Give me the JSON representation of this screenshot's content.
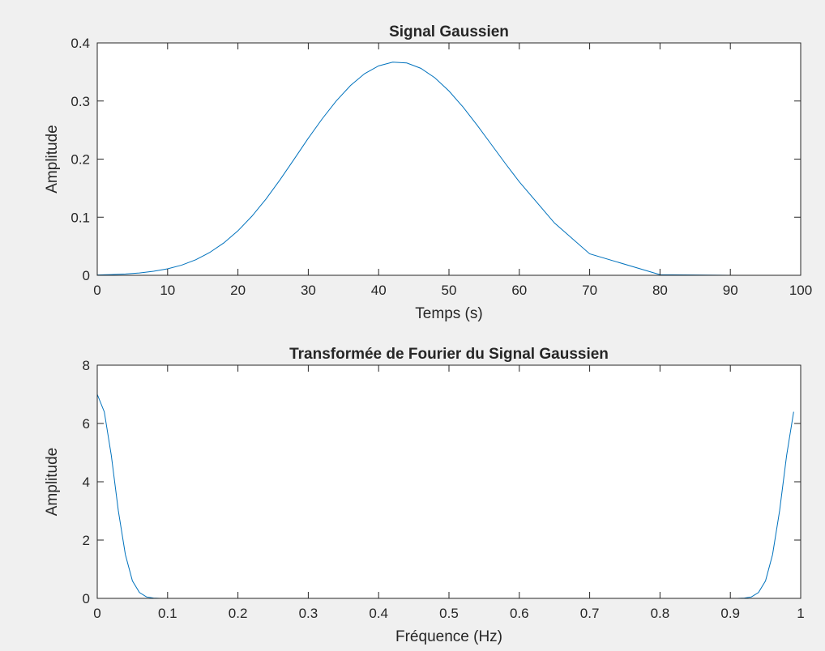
{
  "figure": {
    "background": "#f0f0f0"
  },
  "chart_data": [
    {
      "type": "line",
      "title": "Signal Gaussien",
      "xlabel": "Temps (s)",
      "ylabel": "Amplitude",
      "xlim": [
        0,
        100
      ],
      "ylim": [
        0,
        0.4
      ],
      "xticks": [
        0,
        10,
        20,
        30,
        40,
        50,
        60,
        70,
        80,
        90,
        100
      ],
      "yticks": [
        0,
        0.1,
        0.2,
        0.3,
        0.4
      ],
      "xtick_labels": [
        "0",
        "10",
        "20",
        "30",
        "40",
        "50",
        "60",
        "70",
        "80",
        "90",
        "100"
      ],
      "ytick_labels": [
        "0",
        "0.1",
        "0.2",
        "0.3",
        "0.4"
      ],
      "grid": false,
      "legend": "none",
      "series": [
        {
          "color": "#0072bd",
          "x": [
            0,
            2,
            4,
            6,
            8,
            10,
            12,
            14,
            16,
            18,
            20,
            22,
            24,
            26,
            28,
            30,
            32,
            34,
            36,
            38,
            40,
            42,
            44,
            46,
            48,
            50,
            52,
            54,
            56,
            58,
            60,
            65,
            70,
            80,
            90,
            100
          ],
          "y": [
            0.0006,
            0.0012,
            0.0022,
            0.004,
            0.0069,
            0.0111,
            0.0175,
            0.0267,
            0.0394,
            0.0558,
            0.0766,
            0.1019,
            0.1315,
            0.1647,
            0.2001,
            0.236,
            0.2697,
            0.3005,
            0.3266,
            0.347,
            0.3605,
            0.3669,
            0.3655,
            0.3563,
            0.3399,
            0.3172,
            0.2896,
            0.2585,
            0.2256,
            0.1927,
            0.1609,
            0.09,
            0.037,
            0.001,
            0.0,
            0.0
          ]
        }
      ]
    },
    {
      "type": "line",
      "title": "Transformée de Fourier du Signal Gaussien",
      "xlabel": "Fréquence (Hz)",
      "ylabel": "Amplitude",
      "xlim": [
        0,
        1
      ],
      "ylim": [
        0,
        8
      ],
      "xticks": [
        0,
        0.1,
        0.2,
        0.3,
        0.4,
        0.5,
        0.6,
        0.7,
        0.8,
        0.9,
        1
      ],
      "yticks": [
        0,
        2,
        4,
        6,
        8
      ],
      "xtick_labels": [
        "0",
        "0.1",
        "0.2",
        "0.3",
        "0.4",
        "0.5",
        "0.6",
        "0.7",
        "0.8",
        "0.9",
        "1"
      ],
      "ytick_labels": [
        "0",
        "2",
        "4",
        "6",
        "8"
      ],
      "grid": false,
      "legend": "none",
      "series": [
        {
          "color": "#0072bd",
          "x": [
            0,
            0.01,
            0.02,
            0.03,
            0.04,
            0.05,
            0.06,
            0.07,
            0.08,
            0.09,
            0.1,
            0.2,
            0.3,
            0.4,
            0.5,
            0.6,
            0.7,
            0.8,
            0.9,
            0.91,
            0.92,
            0.93,
            0.94,
            0.95,
            0.96,
            0.97,
            0.98,
            0.99
          ],
          "y": [
            7.0,
            6.4,
            4.9,
            3.0,
            1.5,
            0.6,
            0.2,
            0.05,
            0.01,
            0.0,
            0.0,
            0.0,
            0.0,
            0.0,
            0.0,
            0.0,
            0.0,
            0.0,
            0.0,
            0.0,
            0.01,
            0.05,
            0.2,
            0.6,
            1.5,
            3.0,
            4.9,
            6.4
          ]
        }
      ]
    }
  ]
}
